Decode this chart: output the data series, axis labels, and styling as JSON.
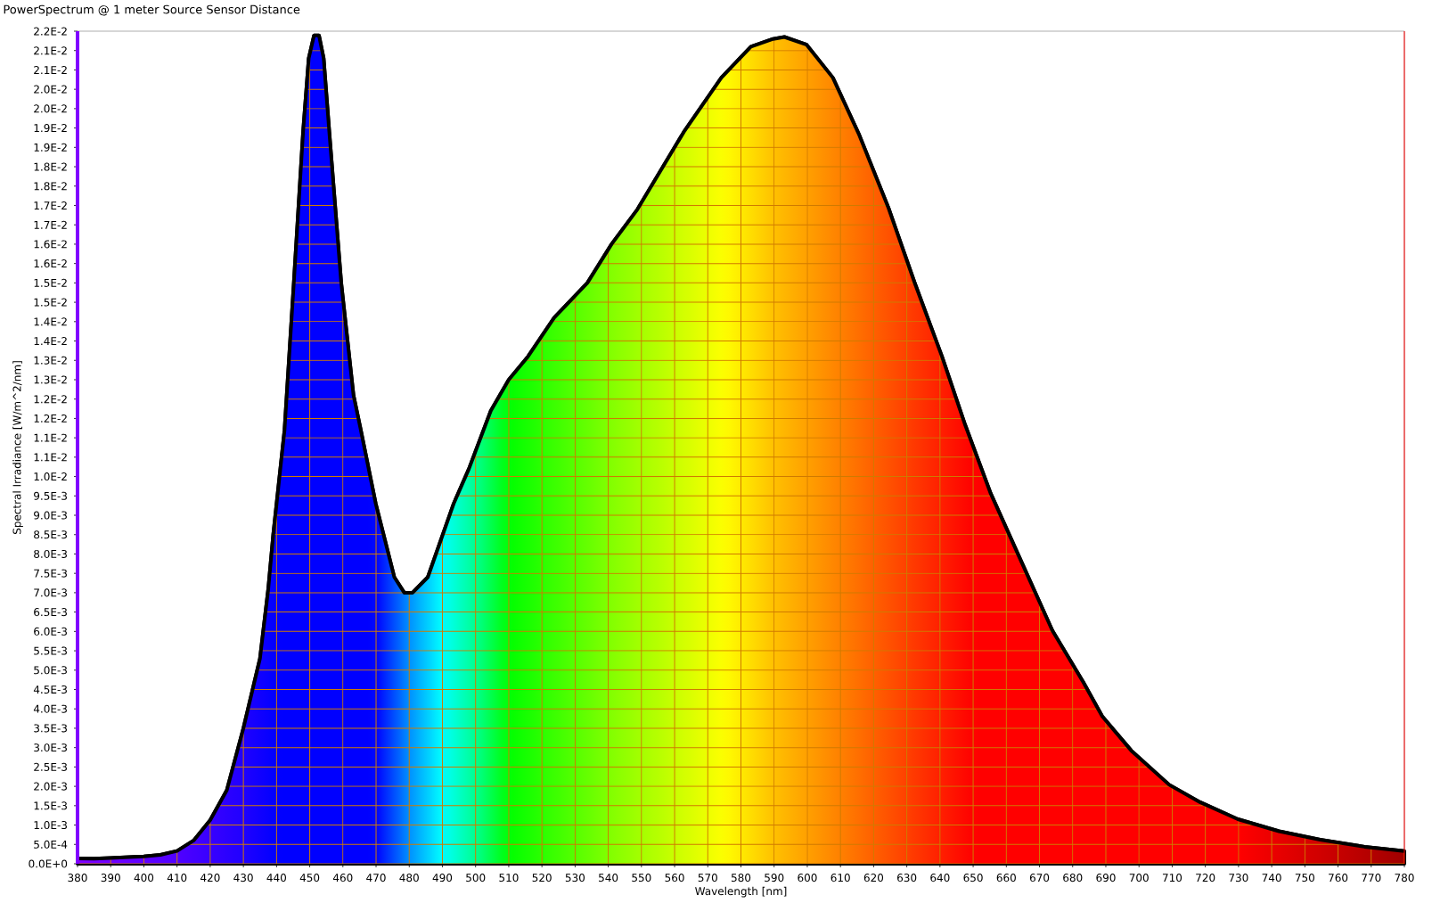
{
  "chart_data": {
    "type": "area",
    "title": "PowerSpectrum @ 1 meter Source Sensor Distance",
    "xlabel": "Wavelength [nm]",
    "ylabel": "Spectral Irradiance [W/m^2/nm]",
    "x": [
      380,
      385,
      390,
      400,
      405,
      410,
      415,
      420,
      425,
      430,
      435,
      437.5,
      439,
      442.4,
      445.2,
      448,
      449.7,
      451.3,
      452.8,
      454.2,
      455.9,
      459.5,
      463.2,
      465.4,
      469.9,
      475.5,
      478.5,
      481,
      485.6,
      493.4,
      498,
      504.6,
      510,
      515.8,
      523.7,
      533.7,
      541,
      548.8,
      562.8,
      574.1,
      583,
      589.7,
      593.1,
      599.8,
      607.7,
      615.5,
      624.5,
      632.3,
      640.6,
      647.6,
      655.3,
      664.6,
      673.9,
      683.2,
      688.9,
      697.7,
      709.1,
      718.4,
      729.8,
      742.2,
      754.6,
      768,
      780
    ],
    "series": [
      {
        "color": "#000000",
        "values": [
          0.00014,
          0.00013,
          0.00015,
          0.00019,
          0.00023,
          0.00033,
          0.0006,
          0.00113,
          0.0019,
          0.0035,
          0.0053,
          0.0071,
          0.0085,
          0.0112,
          0.015,
          0.0189,
          0.0208,
          0.02139,
          0.02139,
          0.0208,
          0.0189,
          0.015,
          0.0121,
          0.0112,
          0.0093,
          0.0074,
          0.007,
          0.007,
          0.0074,
          0.0093,
          0.0102,
          0.0117,
          0.0125,
          0.0131,
          0.0141,
          0.015,
          0.016,
          0.0169,
          0.0189,
          0.0203,
          0.0211,
          0.0213,
          0.02135,
          0.02115,
          0.0203,
          0.01885,
          0.01693,
          0.01502,
          0.0131,
          0.01133,
          0.00956,
          0.00779,
          0.00602,
          0.00469,
          0.00381,
          0.00292,
          0.00204,
          0.00159,
          0.00115,
          0.00084,
          0.00062,
          0.00044,
          0.00033
        ]
      }
    ],
    "xlim": [
      380,
      780
    ],
    "xticks": [
      380,
      390,
      400,
      410,
      420,
      430,
      440,
      450,
      460,
      470,
      480,
      490,
      500,
      510,
      520,
      530,
      540,
      550,
      560,
      570,
      580,
      590,
      600,
      610,
      620,
      630,
      640,
      650,
      660,
      670,
      680,
      690,
      700,
      710,
      720,
      730,
      740,
      750,
      760,
      770,
      780
    ],
    "ylim": [
      0,
      0.0215
    ],
    "yticks": [
      {
        "value": 0,
        "label": "0.0E+0"
      },
      {
        "value": 0.0005,
        "label": "5.0E-4"
      },
      {
        "value": 0.001,
        "label": "1.0E-3"
      },
      {
        "value": 0.0015,
        "label": "1.5E-3"
      },
      {
        "value": 0.002,
        "label": "2.0E-3"
      },
      {
        "value": 0.0025,
        "label": "2.5E-3"
      },
      {
        "value": 0.003,
        "label": "3.0E-3"
      },
      {
        "value": 0.0035,
        "label": "3.5E-3"
      },
      {
        "value": 0.004,
        "label": "4.0E-3"
      },
      {
        "value": 0.0045,
        "label": "4.5E-3"
      },
      {
        "value": 0.005,
        "label": "5.0E-3"
      },
      {
        "value": 0.0055,
        "label": "5.5E-3"
      },
      {
        "value": 0.006,
        "label": "6.0E-3"
      },
      {
        "value": 0.0065,
        "label": "6.5E-3"
      },
      {
        "value": 0.007,
        "label": "7.0E-3"
      },
      {
        "value": 0.0075,
        "label": "7.5E-3"
      },
      {
        "value": 0.008,
        "label": "8.0E-3"
      },
      {
        "value": 0.0085,
        "label": "8.5E-3"
      },
      {
        "value": 0.009,
        "label": "9.0E-3"
      },
      {
        "value": 0.0095,
        "label": "9.5E-3"
      },
      {
        "value": 0.01,
        "label": "1.0E-2"
      },
      {
        "value": 0.0105,
        "label": "1.1E-2"
      },
      {
        "value": 0.011,
        "label": "1.1E-2"
      },
      {
        "value": 0.0115,
        "label": "1.2E-2"
      },
      {
        "value": 0.012,
        "label": "1.2E-2"
      },
      {
        "value": 0.0125,
        "label": "1.3E-2"
      },
      {
        "value": 0.013,
        "label": "1.3E-2"
      },
      {
        "value": 0.0135,
        "label": "1.4E-2"
      },
      {
        "value": 0.014,
        "label": "1.4E-2"
      },
      {
        "value": 0.0145,
        "label": "1.5E-2"
      },
      {
        "value": 0.015,
        "label": "1.5E-2"
      },
      {
        "value": 0.0155,
        "label": "1.6E-2"
      },
      {
        "value": 0.016,
        "label": "1.6E-2"
      },
      {
        "value": 0.0165,
        "label": "1.7E-2"
      },
      {
        "value": 0.017,
        "label": "1.7E-2"
      },
      {
        "value": 0.0175,
        "label": "1.8E-2"
      },
      {
        "value": 0.018,
        "label": "1.8E-2"
      },
      {
        "value": 0.0185,
        "label": "1.9E-2"
      },
      {
        "value": 0.019,
        "label": "1.9E-2"
      },
      {
        "value": 0.0195,
        "label": "2.0E-2"
      },
      {
        "value": 0.02,
        "label": "2.0E-2"
      },
      {
        "value": 0.0205,
        "label": "2.1E-2"
      },
      {
        "value": 0.021,
        "label": "2.1E-2"
      },
      {
        "value": 0.0215,
        "label": "2.2E-2"
      }
    ],
    "grid": true,
    "legend": false,
    "marker": "none",
    "line_style": "solid"
  }
}
